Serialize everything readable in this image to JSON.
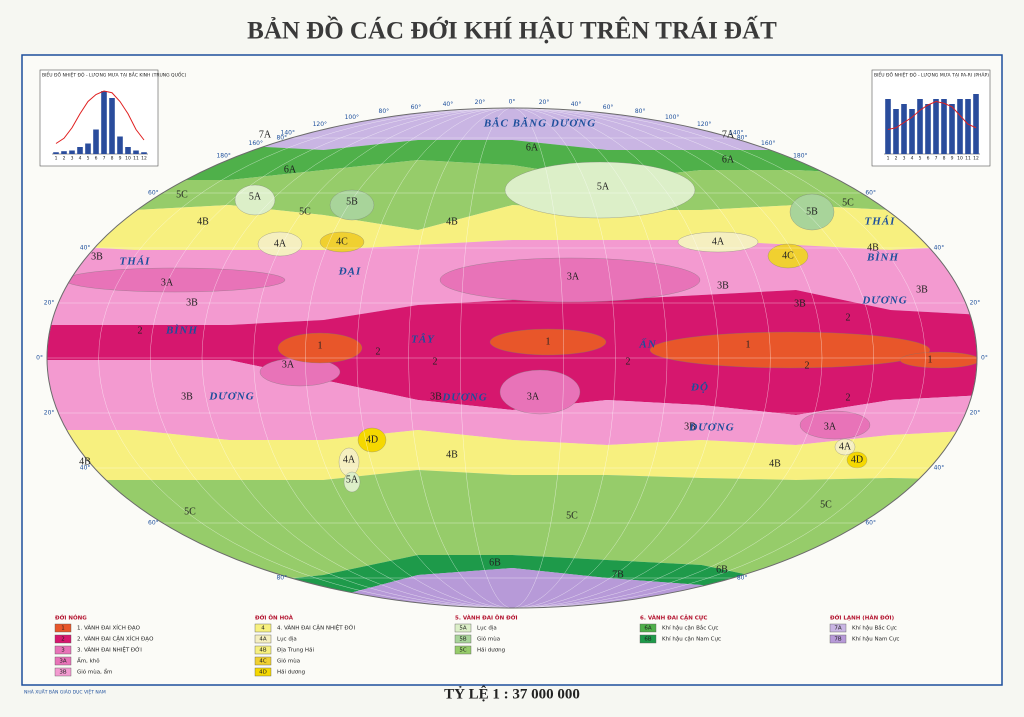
{
  "title": "BẢN ĐỒ CÁC ĐỚI KHÍ HẬU TRÊN TRÁI ĐẤT",
  "scale": "TỶ LỆ 1 : 37 000 000",
  "publisher": "NHÀ XUẤT BẢN GIÁO DỤC VIỆT NAM",
  "zones": {
    "1": "#e8562a",
    "2": "#d6176e",
    "3": "#e873b8",
    "3A": "#e873b8",
    "3B": "#f39ad0",
    "4": "#f7f07f",
    "4A": "#f5efc0",
    "4B": "#f7f07f",
    "4C": "#f0d030",
    "4D": "#f5d800",
    "5A": "#dcefc8",
    "5B": "#a8d49a",
    "5C": "#96cc6a",
    "6A": "#4fb04a",
    "6B": "#1e9a4a",
    "7A": "#c9b5e3",
    "7B": "#b79ad8"
  },
  "zone_labels": [
    "7A",
    "7A",
    "6A",
    "6A",
    "6A",
    "5C",
    "5A",
    "5C",
    "5B",
    "5A",
    "5B",
    "5C",
    "4B",
    "4A",
    "4C",
    "4B",
    "4A",
    "4C",
    "4B",
    "3B",
    "3A",
    "3B",
    "3A",
    "3B",
    "3B",
    "3B",
    "2",
    "2",
    "1",
    "1",
    "1",
    "1",
    "3A",
    "2",
    "2",
    "2",
    "2",
    "2",
    "3B",
    "3B",
    "3A",
    "3B",
    "3A",
    "4D",
    "4A",
    "4A",
    "4D",
    "4B",
    "4B",
    "4B",
    "5A",
    "5C",
    "5C",
    "5C",
    "6B",
    "6B",
    "7B"
  ],
  "ocean_labels": [
    "BẮC BĂNG DƯƠNG",
    "THÁI",
    "BÌNH",
    "DƯƠNG",
    "ĐẠI",
    "TÂY",
    "DƯƠNG",
    "ẤN",
    "ĐỘ",
    "DƯƠNG",
    "THÁI",
    "BÌNH",
    "DƯƠNG"
  ],
  "latitudes": [
    "80°",
    "60°",
    "40°",
    "20°",
    "0°",
    "20°",
    "40°",
    "60°",
    "80°"
  ],
  "longitudes": [
    "180°",
    "160°",
    "140°",
    "120°",
    "100°",
    "80°",
    "60°",
    "40°",
    "20°",
    "0°",
    "20°",
    "40°",
    "60°",
    "80°",
    "100°",
    "120°",
    "140°",
    "160°",
    "180°"
  ],
  "legend": [
    {
      "heading": "ĐỚI NÓNG",
      "items": [
        {
          "code": "1",
          "text": "1. VÀNH ĐAI XÍCH ĐẠO"
        },
        {
          "code": "2",
          "text": "2. VÀNH ĐAI CẬN XÍCH ĐẠO"
        },
        {
          "code": "3",
          "text": "3. VÀNH ĐAI NHIỆT ĐỚI"
        },
        {
          "code": "3A",
          "text": "Ấm, khô"
        },
        {
          "code": "3B",
          "text": "Gió mùa, ẩm"
        }
      ]
    },
    {
      "heading": "ĐỚI ÔN HOÀ",
      "items": [
        {
          "code": "4",
          "text": "4. VÀNH ĐAI CẬN NHIỆT ĐỚI"
        },
        {
          "code": "4A",
          "text": "Lục địa"
        },
        {
          "code": "4B",
          "text": "Địa Trung Hải"
        },
        {
          "code": "4C",
          "text": "Gió mùa"
        },
        {
          "code": "4D",
          "text": "Hải dương"
        }
      ]
    },
    {
      "heading": "5. VÀNH ĐAI ÔN ĐỚI",
      "items": [
        {
          "code": "5A",
          "text": "Lục địa"
        },
        {
          "code": "5B",
          "text": "Gió mùa"
        },
        {
          "code": "5C",
          "text": "Hải dương"
        }
      ]
    },
    {
      "heading": "6. VÀNH ĐAI CẬN CỰC",
      "items": [
        {
          "code": "6A",
          "text": "Khí hậu cận Bắc Cực"
        },
        {
          "code": "6B",
          "text": "Khí hậu cận Nam Cực"
        }
      ]
    },
    {
      "heading": "ĐỚI LẠNH (HÀN ĐỚI)",
      "items": [
        {
          "code": "7A",
          "text": "Khí hậu Bắc Cực"
        },
        {
          "code": "7B",
          "text": "Khí hậu Nam Cực"
        }
      ]
    }
  ],
  "insets": [
    {
      "title": "BIỂU ĐỒ NHIỆT ĐỘ - LƯỢNG MƯA TẠI BẮC KINH (TRUNG QUỐC)",
      "months": [
        "1",
        "2",
        "3",
        "4",
        "5",
        "6",
        "7",
        "8",
        "9",
        "10",
        "11",
        "12"
      ],
      "rain": [
        5,
        8,
        10,
        20,
        30,
        70,
        180,
        160,
        50,
        20,
        10,
        5
      ],
      "temp": [
        -4,
        -1,
        5,
        13,
        20,
        24,
        26,
        25,
        20,
        13,
        4,
        -2
      ],
      "rain_lim": [
        0,
        200
      ],
      "temp_lim": [
        -10,
        30
      ],
      "bar_color": "#2a4c9c",
      "line_color": "#e02020"
    },
    {
      "title": "BIỂU ĐỒ NHIỆT ĐỘ - LƯỢNG MƯA TẠI PA-RI (PHÁP)",
      "months": [
        "1",
        "2",
        "3",
        "4",
        "5",
        "6",
        "7",
        "8",
        "9",
        "10",
        "11",
        "12"
      ],
      "rain": [
        55,
        45,
        50,
        45,
        55,
        50,
        55,
        55,
        50,
        55,
        55,
        60
      ],
      "temp": [
        4,
        5,
        8,
        11,
        15,
        18,
        20,
        19,
        17,
        12,
        7,
        5
      ],
      "rain_lim": [
        0,
        70
      ],
      "temp_lim": [
        -10,
        30
      ],
      "bar_color": "#2a4c9c",
      "line_color": "#e02020"
    }
  ]
}
